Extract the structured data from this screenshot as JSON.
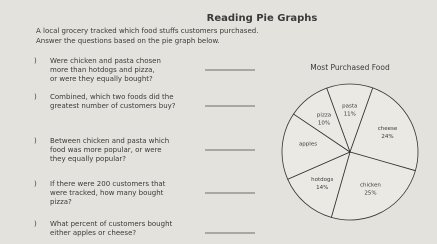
{
  "header": {
    "title": "Reading Pie Graphs",
    "instructions": [
      "A local grocery tracked which food stuffs customers purchased.",
      "Answer the questions based on the pie graph below."
    ]
  },
  "questions": [
    {
      "lines": [
        "Were chicken and pasta chosen",
        "more than hotdogs and pizza,",
        "or were they equally bought?"
      ]
    },
    {
      "lines": [
        "Combined, which two foods did the",
        "greatest number of customers buy?"
      ]
    },
    {
      "lines": [
        "Between chicken and pasta which",
        "food was more popular, or were",
        "they equally popular?"
      ]
    },
    {
      "lines": [
        "If there were 200 customers that",
        "were tracked, how many bought",
        "pizza?"
      ]
    },
    {
      "lines": [
        "What percent of customers bought",
        "either apples or cheese?"
      ]
    }
  ],
  "chart_data": {
    "type": "pie",
    "title": "Most Purchased Food",
    "categories": [
      "pasta",
      "cheese",
      "chicken",
      "hotdogs",
      "apples",
      "pizza"
    ],
    "values": [
      11,
      24,
      25,
      14,
      16,
      10
    ],
    "value_labels": [
      "11%",
      "24%",
      "25%",
      "14%",
      null,
      "10%"
    ]
  }
}
